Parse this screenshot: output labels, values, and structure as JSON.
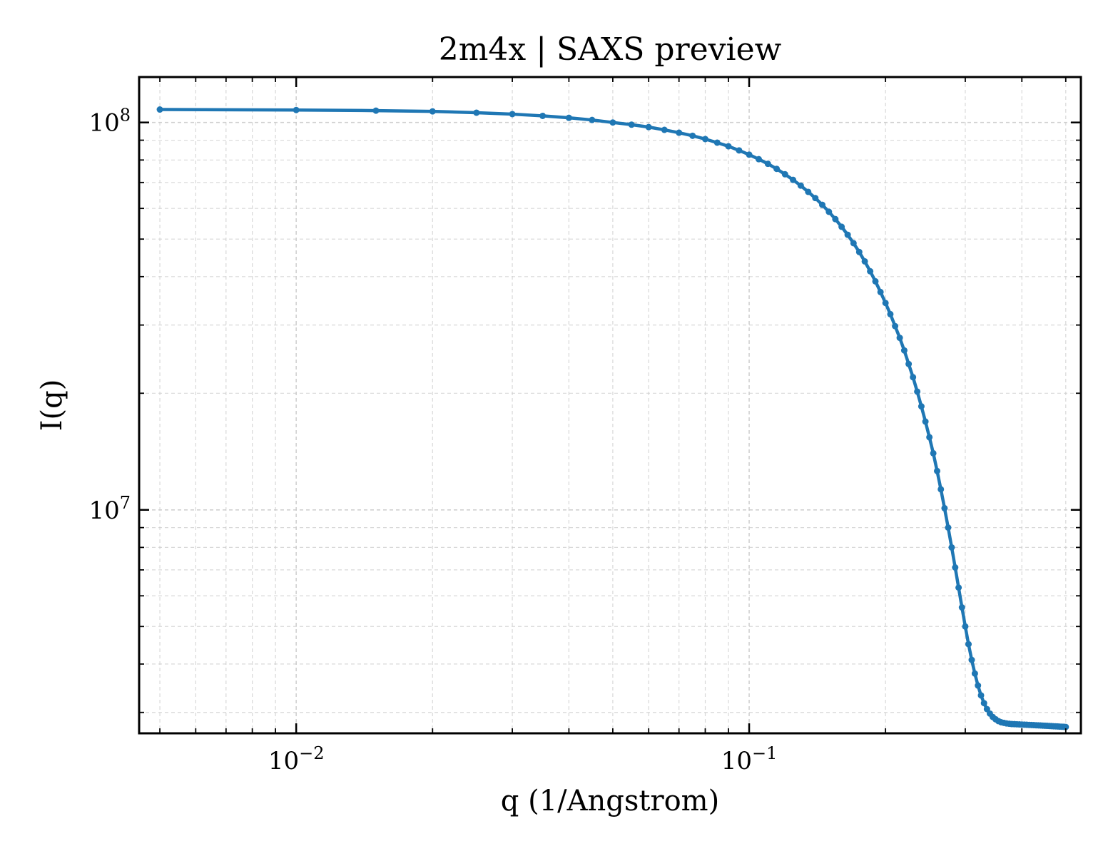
{
  "chart_data": {
    "type": "line",
    "title": "2m4x | SAXS preview",
    "xlabel": "q (1/Angstrom)",
    "ylabel": "I(q)",
    "xscale": "log",
    "yscale": "log",
    "xlim": [
      0.0045,
      0.54
    ],
    "ylim": [
      2650000,
      131000000
    ],
    "grid": true,
    "line_color": "#1f77b4",
    "x_ticks": [
      {
        "value": 0.01,
        "base": "10",
        "exp": "−2"
      },
      {
        "value": 0.1,
        "base": "10",
        "exp": "−1"
      }
    ],
    "y_ticks": [
      {
        "value": 10000000,
        "base": "10",
        "exp": "7"
      },
      {
        "value": 100000000,
        "base": "10",
        "exp": "8"
      }
    ],
    "series": [
      {
        "x": [
          0.005,
          0.01,
          0.015,
          0.02,
          0.025,
          0.03,
          0.035,
          0.04,
          0.045,
          0.05,
          0.055,
          0.06,
          0.065,
          0.07,
          0.075,
          0.08,
          0.085,
          0.09,
          0.095,
          0.1,
          0.105,
          0.11,
          0.115,
          0.12,
          0.125,
          0.13,
          0.135,
          0.14,
          0.145,
          0.15,
          0.155,
          0.16,
          0.165,
          0.17,
          0.175,
          0.18,
          0.185,
          0.19,
          0.195,
          0.2,
          0.205,
          0.21,
          0.215,
          0.22,
          0.225,
          0.23,
          0.235,
          0.24,
          0.245,
          0.25,
          0.255,
          0.26,
          0.265,
          0.27,
          0.275,
          0.28,
          0.285,
          0.29,
          0.295,
          0.3,
          0.305,
          0.31,
          0.315,
          0.32,
          0.325,
          0.33,
          0.335,
          0.34,
          0.345,
          0.35,
          0.355,
          0.36,
          0.365,
          0.37,
          0.375,
          0.38,
          0.385,
          0.39,
          0.395,
          0.4,
          0.405,
          0.41,
          0.415,
          0.42,
          0.425,
          0.43,
          0.435,
          0.44,
          0.445,
          0.45,
          0.455,
          0.46,
          0.465,
          0.47,
          0.475,
          0.48,
          0.485,
          0.49,
          0.495,
          0.5
        ],
        "y": [
          108000000,
          107700000,
          107300000,
          106800000,
          106000000,
          105100000,
          104000000,
          102800000,
          101500000,
          100000000,
          98700000,
          97300000,
          95700000,
          94100000,
          92400000,
          90600000,
          88700000,
          86800000,
          84700000,
          82600000,
          80400000,
          78200000,
          75900000,
          73500000,
          71100000,
          68700000,
          66200000,
          63800000,
          61300000,
          58800000,
          56300000,
          53800000,
          51300000,
          48800000,
          46300000,
          43800000,
          41300000,
          38900000,
          36500000,
          34200000,
          32000000,
          29800000,
          27800000,
          25800000,
          23800000,
          22000000,
          20200000,
          18500000,
          16900000,
          15400000,
          14000000,
          12600000,
          11300000,
          10100000,
          9000000,
          8000000,
          7100000,
          6300000,
          5600000,
          5000000,
          4500000,
          4100000,
          3780000,
          3520000,
          3320000,
          3170000,
          3060000,
          2980000,
          2920000,
          2880000,
          2850000,
          2830000,
          2820000,
          2810000,
          2805000,
          2800000,
          2798000,
          2796000,
          2794000,
          2792000,
          2790000,
          2788000,
          2786000,
          2784000,
          2782000,
          2780000,
          2778000,
          2776000,
          2774000,
          2772000,
          2770000,
          2768000,
          2766000,
          2764000,
          2762000,
          2760000,
          2758000,
          2756000,
          2754000,
          2752000
        ]
      }
    ]
  }
}
